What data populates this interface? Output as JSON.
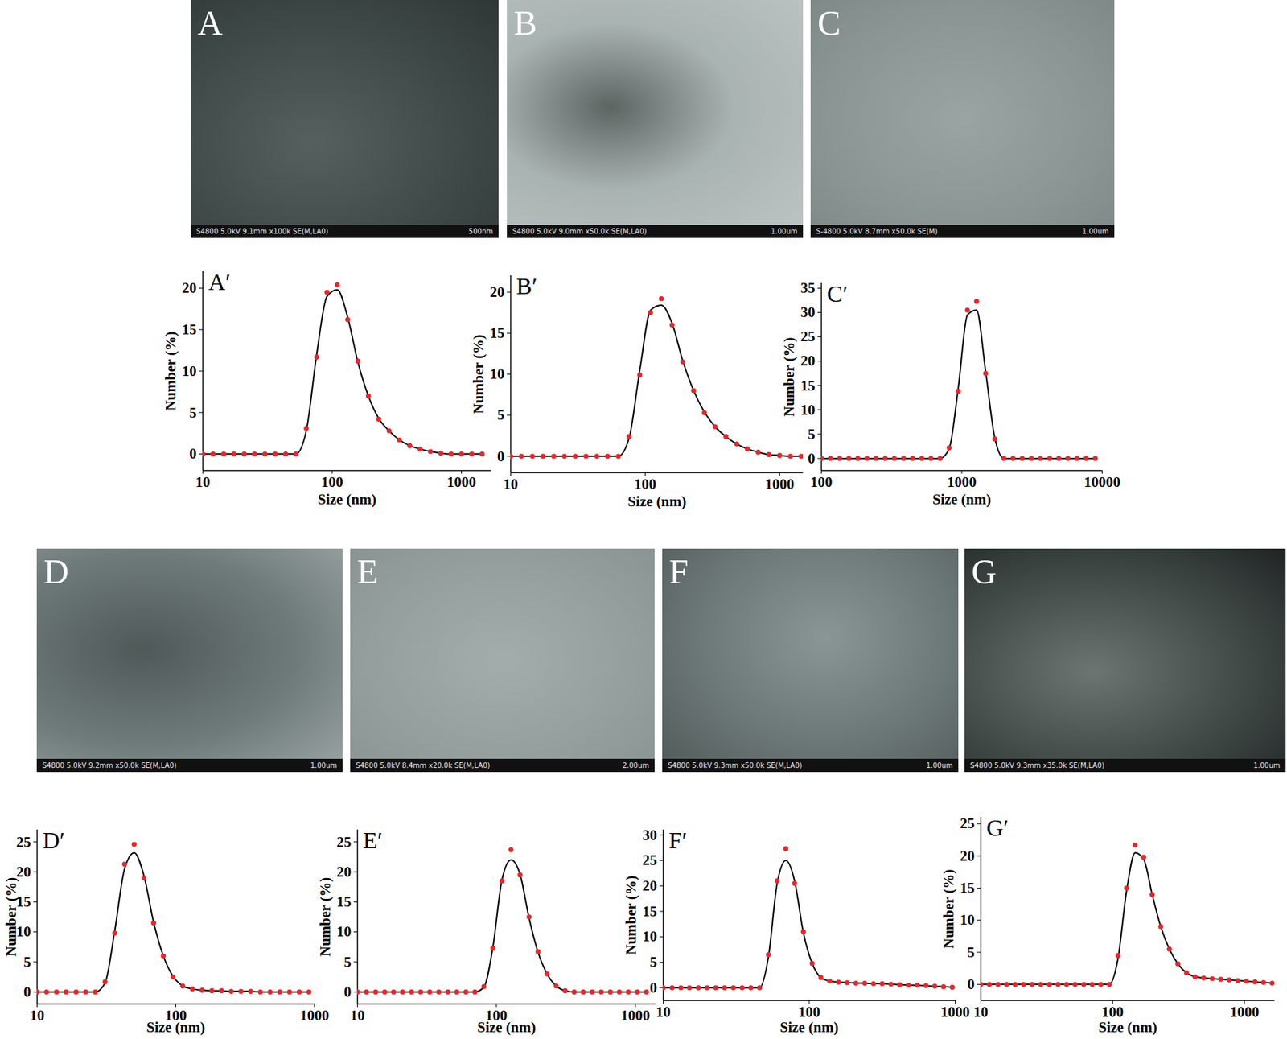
{
  "micrographs": [
    {
      "label": "A",
      "info": "S4800 5.0kV 9.1mm x100k SE(M,LA0)",
      "scale_bar": "500nm"
    },
    {
      "label": "B",
      "info": "S4800 5.0kV 9.0mm x50.0k SE(M,LA0)",
      "scale_bar": "1.00um"
    },
    {
      "label": "C",
      "info": "S-4800 5.0kV 8.7mm x50.0k SE(M)",
      "scale_bar": "1.00um"
    },
    {
      "label": "D",
      "info": "S4800 5.0kV 9.2mm x50.0k SE(M,LA0)",
      "scale_bar": "1.00um"
    },
    {
      "label": "E",
      "info": "S4800 5.0kV 8.4mm x20.0k SE(M,LA0)",
      "scale_bar": "2.00um"
    },
    {
      "label": "F",
      "info": "S4800 5.0kV 9.3mm x50.0k SE(M,LA0)",
      "scale_bar": "1.00um"
    },
    {
      "label": "G",
      "info": "S4800 5.0kV 9.3mm x35.0k SE(M,LA0)",
      "scale_bar": "1.00um"
    }
  ],
  "chart_data": [
    {
      "type": "line",
      "title": "A′",
      "x_label": "Size (nm)",
      "y_label": "Number (%)",
      "log": "x",
      "grid": false,
      "xlim": [
        10,
        1700
      ],
      "xticks": [
        10,
        100,
        1000
      ],
      "ylim": [
        -2,
        22
      ],
      "yticks": [
        0,
        5,
        10,
        15,
        20
      ],
      "x": [
        10,
        12,
        14.5,
        17.4,
        20.9,
        25.1,
        30.2,
        36.3,
        43.7,
        52.5,
        63.1,
        75.9,
        91.2,
        109.6,
        131.8,
        158.5,
        190.5,
        229.1,
        275.4,
        331.1,
        398.1,
        478.6,
        575.4,
        691.8,
        831.8,
        1000,
        1202,
        1445
      ],
      "series": [
        {
          "type": "scatter",
          "marker": "circle",
          "color": "#e8262b",
          "values": [
            0,
            0,
            0,
            0,
            0,
            0,
            0,
            0,
            0,
            0,
            3.1,
            11.7,
            19.5,
            20.4,
            16.2,
            11.2,
            7.0,
            4.2,
            2.8,
            1.7,
            1.0,
            0.6,
            0.3,
            0.1,
            0,
            0,
            0,
            0
          ]
        },
        {
          "type": "line",
          "color": "#000000",
          "values": [
            0,
            0,
            0,
            0,
            0,
            0,
            0,
            0,
            0,
            0,
            2.8,
            12.0,
            19.0,
            19.8,
            16.5,
            11.0,
            7.0,
            4.3,
            2.8,
            1.7,
            1.0,
            0.6,
            0.3,
            0.1,
            0,
            0,
            0,
            0
          ]
        }
      ]
    },
    {
      "type": "line",
      "title": "B′",
      "x_label": "Size (nm)",
      "y_label": "Number (%)",
      "log": "x",
      "grid": false,
      "xlim": [
        10,
        1500
      ],
      "xticks": [
        10,
        100,
        1000
      ],
      "ylim": [
        -2,
        22
      ],
      "yticks": [
        0,
        5,
        10,
        15,
        20
      ],
      "x": [
        10,
        12,
        14.5,
        17.4,
        20.9,
        25.1,
        30.2,
        36.3,
        43.7,
        52.5,
        63.1,
        75.9,
        91.2,
        109.6,
        131.8,
        158.5,
        190.5,
        229.1,
        275.4,
        331.1,
        398.1,
        478.6,
        575.4,
        691.8,
        831.8,
        1000,
        1202,
        1445
      ],
      "series": [
        {
          "type": "scatter",
          "marker": "circle",
          "color": "#e8262b",
          "values": [
            0,
            0,
            0,
            0,
            0,
            0,
            0,
            0,
            0,
            0,
            0,
            2.4,
            9.9,
            17.5,
            19.2,
            16.0,
            11.5,
            8.0,
            5.3,
            3.6,
            2.4,
            1.5,
            0.9,
            0.5,
            0.2,
            0.1,
            0,
            0
          ]
        },
        {
          "type": "line",
          "color": "#000000",
          "values": [
            0,
            0,
            0,
            0,
            0,
            0,
            0,
            0,
            0,
            0,
            0,
            2.2,
            10.5,
            17.8,
            18.4,
            16.2,
            11.6,
            8.0,
            5.4,
            3.6,
            2.4,
            1.5,
            0.9,
            0.5,
            0.2,
            0.1,
            0,
            0
          ]
        }
      ]
    },
    {
      "type": "line",
      "title": "C′",
      "x_label": "Size (nm)",
      "y_label": "Number (%)",
      "log": "x",
      "grid": false,
      "xlim": [
        100,
        10000
      ],
      "xticks": [
        100,
        1000,
        10000
      ],
      "ylim": [
        -2.5,
        36
      ],
      "yticks": [
        0,
        5,
        10,
        15,
        20,
        25,
        30,
        35
      ],
      "x": [
        100,
        116,
        135,
        157,
        182,
        211,
        245,
        285,
        331,
        385,
        447,
        519,
        603,
        700,
        813,
        944,
        1097,
        1274,
        1480,
        1719,
        1997,
        2319,
        2694,
        3129,
        3635,
        4222,
        4904,
        5697,
        6617,
        7686,
        8928
      ],
      "series": [
        {
          "type": "scatter",
          "marker": "circle",
          "color": "#e8262b",
          "values": [
            0,
            0,
            0,
            0,
            0,
            0,
            0,
            0,
            0,
            0,
            0,
            0,
            0,
            0,
            2.2,
            13.8,
            30.5,
            32.3,
            17.5,
            4.0,
            0,
            0,
            0,
            0,
            0,
            0,
            0,
            0,
            0,
            0,
            0
          ]
        },
        {
          "type": "line",
          "color": "#000000",
          "values": [
            0,
            0,
            0,
            0,
            0,
            0,
            0,
            0,
            0,
            0,
            0,
            0,
            0,
            0,
            2.0,
            14.5,
            29.5,
            30.5,
            17.8,
            4.2,
            0,
            0,
            0,
            0,
            0,
            0,
            0,
            0,
            0,
            0,
            0
          ]
        }
      ]
    },
    {
      "type": "line",
      "title": "D′",
      "x_label": "Size (nm)",
      "y_label": "Number (%)",
      "log": "x",
      "grid": false,
      "xlim": [
        10,
        1000
      ],
      "xticks": [
        10,
        100,
        1000
      ],
      "ylim": [
        -2,
        27
      ],
      "yticks": [
        0,
        5,
        10,
        15,
        20,
        25
      ],
      "x": [
        10,
        11.7,
        13.8,
        16.2,
        19.1,
        22.4,
        26.3,
        30.9,
        36.3,
        42.7,
        50.1,
        58.9,
        69.2,
        81.3,
        95.5,
        112.2,
        131.8,
        154.9,
        182.0,
        213.8,
        251.2,
        295.1,
        346.7,
        407.4,
        478.6,
        562.3,
        660.7,
        776.2,
        912.0
      ],
      "series": [
        {
          "type": "scatter",
          "marker": "circle",
          "color": "#e8262b",
          "values": [
            0,
            0,
            0,
            0,
            0,
            0,
            0,
            1.7,
            9.8,
            21.3,
            24.6,
            19.0,
            11.5,
            6.0,
            2.5,
            1.0,
            0.5,
            0.3,
            0.2,
            0.2,
            0.1,
            0.1,
            0.1,
            0,
            0,
            0,
            0,
            0,
            0
          ]
        },
        {
          "type": "line",
          "color": "#000000",
          "values": [
            0,
            0,
            0,
            0,
            0,
            0,
            0,
            1.5,
            10.2,
            20.5,
            23.2,
            19.4,
            11.6,
            6.0,
            2.6,
            1.0,
            0.5,
            0.3,
            0.2,
            0.2,
            0.1,
            0.1,
            0.1,
            0,
            0,
            0,
            0,
            0,
            0
          ]
        }
      ]
    },
    {
      "type": "line",
      "title": "E′",
      "x_label": "Size (nm)",
      "y_label": "Number (%)",
      "log": "x",
      "grid": false,
      "xlim": [
        10,
        1400
      ],
      "xticks": [
        10,
        100,
        1000
      ],
      "ylim": [
        -2,
        27
      ],
      "yticks": [
        0,
        5,
        10,
        15,
        20,
        25
      ],
      "x": [
        10,
        11.6,
        13.5,
        15.7,
        18.2,
        21.1,
        24.5,
        28.5,
        33.1,
        38.5,
        44.7,
        51.9,
        60.3,
        70.0,
        81.3,
        94.4,
        109.7,
        127.4,
        148.0,
        171.9,
        199.5,
        231.7,
        269.2,
        312.6,
        363.1,
        421.7,
        489.8,
        568.9,
        660.7,
        767.4,
        891.3,
        1035,
        1202
      ],
      "series": [
        {
          "type": "scatter",
          "marker": "circle",
          "color": "#e8262b",
          "values": [
            0,
            0,
            0,
            0,
            0,
            0,
            0,
            0,
            0,
            0,
            0,
            0,
            0,
            0,
            0.9,
            7.3,
            18.5,
            23.7,
            19.5,
            12.5,
            6.7,
            3.0,
            1.0,
            0.2,
            0,
            0,
            0,
            0,
            0,
            0,
            0,
            0,
            0
          ]
        },
        {
          "type": "line",
          "color": "#000000",
          "values": [
            0,
            0,
            0,
            0,
            0,
            0,
            0,
            0,
            0,
            0,
            0,
            0,
            0,
            0,
            0.8,
            7.5,
            18.7,
            22.0,
            19.6,
            12.3,
            6.6,
            3.0,
            1.0,
            0.2,
            0,
            0,
            0,
            0,
            0,
            0,
            0,
            0,
            0
          ]
        }
      ]
    },
    {
      "type": "line",
      "title": "F′",
      "x_label": "Size (nm)",
      "y_label": "Number (%)",
      "log": "x",
      "grid": false,
      "xlim": [
        10,
        1000
      ],
      "xticks": [
        10,
        100,
        1000
      ],
      "ylim": [
        -2.5,
        31
      ],
      "yticks": [
        0,
        5,
        10,
        15,
        20,
        25,
        30
      ],
      "x": [
        10,
        11.5,
        13.2,
        15.1,
        17.4,
        20.0,
        22.9,
        26.3,
        30.2,
        34.7,
        39.8,
        45.7,
        52.5,
        60.3,
        69.2,
        79.4,
        91.2,
        104.7,
        120.2,
        138.0,
        158.5,
        182.0,
        208.9,
        239.9,
        275.4,
        316.2,
        363.1,
        416.9,
        478.6,
        549.5,
        631.0,
        724.4,
        831.8,
        955.0
      ],
      "series": [
        {
          "type": "scatter",
          "marker": "circle",
          "color": "#e8262b",
          "values": [
            0,
            0,
            0,
            0,
            0,
            0,
            0,
            0,
            0,
            0,
            0,
            0,
            6.5,
            21.0,
            27.3,
            20.5,
            11.0,
            4.8,
            2.0,
            1.3,
            1.1,
            1.0,
            0.9,
            0.9,
            0.8,
            0.8,
            0.7,
            0.6,
            0.5,
            0.5,
            0.4,
            0.3,
            0.2,
            0.1
          ]
        },
        {
          "type": "line",
          "color": "#000000",
          "values": [
            0,
            0,
            0,
            0,
            0,
            0,
            0,
            0,
            0,
            0,
            0,
            0,
            6.0,
            20.5,
            25.0,
            21.0,
            10.8,
            4.8,
            2.0,
            1.3,
            1.1,
            1.0,
            0.9,
            0.9,
            0.8,
            0.8,
            0.7,
            0.6,
            0.5,
            0.5,
            0.4,
            0.3,
            0.2,
            0.1
          ]
        }
      ]
    },
    {
      "type": "line",
      "title": "G′",
      "x_label": "Size (nm)",
      "y_label": "Number (%)",
      "log": "x",
      "grid": false,
      "xlim": [
        10,
        1700
      ],
      "xticks": [
        10,
        100,
        1000
      ],
      "ylim": [
        -2.5,
        26
      ],
      "yticks": [
        0,
        5,
        10,
        15,
        20,
        25
      ],
      "x": [
        10,
        11.6,
        13.5,
        15.7,
        18.2,
        21.1,
        24.5,
        28.5,
        33.1,
        38.5,
        44.7,
        51.9,
        60.3,
        70.0,
        81.3,
        94.4,
        109.7,
        127.4,
        148.0,
        171.9,
        199.5,
        231.7,
        269.2,
        312.6,
        363.1,
        421.7,
        489.8,
        568.9,
        660.7,
        767.4,
        891.3,
        1035,
        1202,
        1396,
        1622
      ],
      "series": [
        {
          "type": "scatter",
          "marker": "circle",
          "color": "#e8262b",
          "values": [
            0,
            0,
            0,
            0,
            0,
            0,
            0,
            0,
            0,
            0,
            0,
            0,
            0,
            0,
            0,
            0,
            4.5,
            15.0,
            21.7,
            19.8,
            14.0,
            9.0,
            5.5,
            3.2,
            1.8,
            1.2,
            1.0,
            0.9,
            0.8,
            0.7,
            0.6,
            0.5,
            0.4,
            0.3,
            0.2
          ]
        },
        {
          "type": "line",
          "color": "#000000",
          "values": [
            0,
            0,
            0,
            0,
            0,
            0,
            0,
            0,
            0,
            0,
            0,
            0,
            0,
            0,
            0,
            0,
            4.0,
            14.5,
            20.5,
            19.5,
            14.0,
            9.0,
            5.5,
            3.2,
            1.8,
            1.2,
            1.0,
            0.9,
            0.8,
            0.7,
            0.6,
            0.5,
            0.4,
            0.3,
            0.2
          ]
        }
      ]
    }
  ]
}
